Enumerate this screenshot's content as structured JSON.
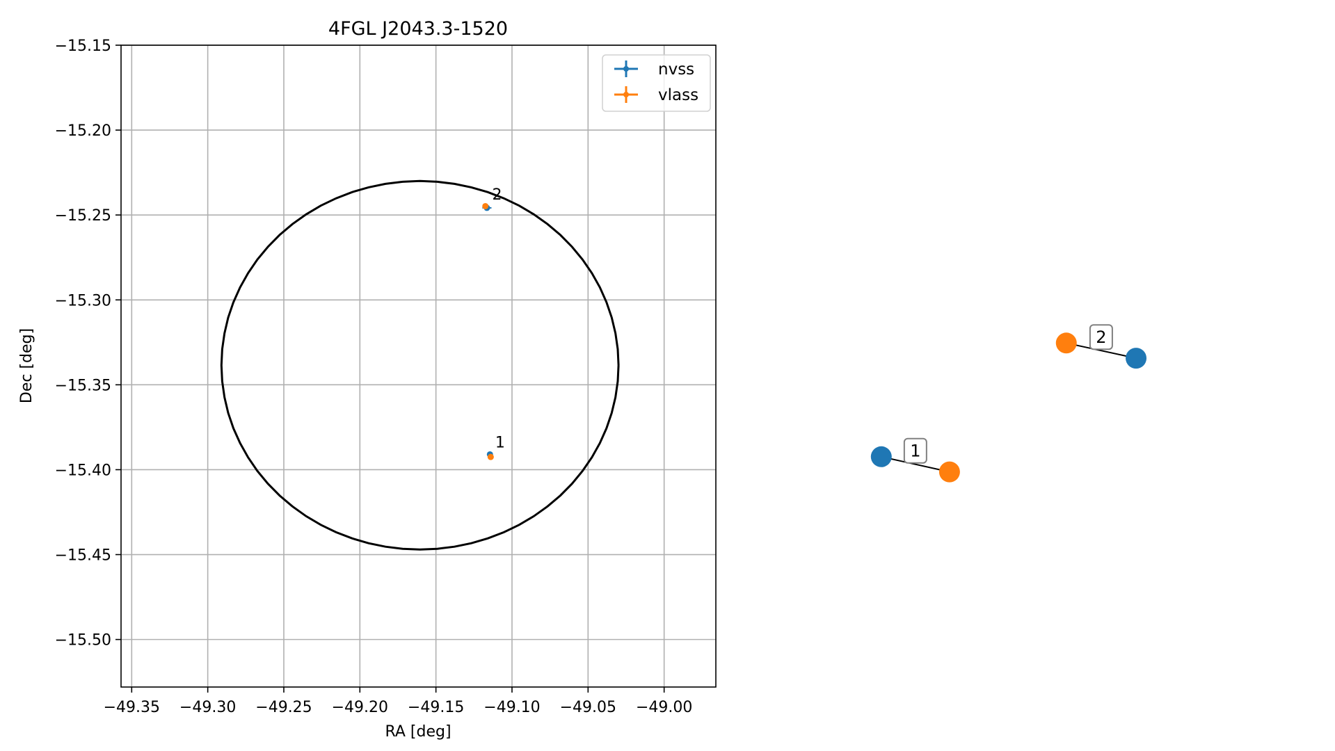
{
  "chart_data": [
    {
      "type": "scatter",
      "title": "4FGL J2043.3-1520",
      "xlabel": "RA [deg]",
      "ylabel": "Dec [deg]",
      "xlim": [
        -49.357,
        -48.966
      ],
      "ylim": [
        -15.528,
        -15.15
      ],
      "xticks": [
        -49.35,
        -49.3,
        -49.25,
        -49.2,
        -49.15,
        -49.1,
        -49.05,
        -49.0
      ],
      "xtick_labels": [
        "−49.35",
        "−49.30",
        "−49.25",
        "−49.20",
        "−49.15",
        "−49.10",
        "−49.05",
        "−49.00"
      ],
      "yticks": [
        -15.15,
        -15.2,
        -15.25,
        -15.3,
        -15.35,
        -15.4,
        -15.45,
        -15.5
      ],
      "ytick_labels": [
        "−15.15",
        "−15.20",
        "−15.25",
        "−15.30",
        "−15.35",
        "−15.40",
        "−15.45",
        "−15.50"
      ],
      "grid": true,
      "legend_position": "top-right",
      "series": [
        {
          "name": "nvss",
          "color": "#1f77b4",
          "points": [
            {
              "label": "1",
              "x": -49.1145,
              "y": -15.391,
              "xerr": 0.0012,
              "yerr": 0.001
            },
            {
              "label": "2",
              "x": -49.1165,
              "y": -15.2458,
              "xerr": 0.003,
              "yerr": 0.001
            }
          ]
        },
        {
          "name": "vlass",
          "color": "#ff7f0e",
          "points": [
            {
              "label": "1",
              "x": -49.114,
              "y": -15.3925,
              "xerr": 0.0003,
              "yerr": 0.0003
            },
            {
              "label": "2",
              "x": -49.1175,
              "y": -15.2448,
              "xerr": 0.0003,
              "yerr": 0.0003
            }
          ]
        }
      ],
      "annotations": [
        {
          "text": "1",
          "x": -49.111,
          "y": -15.387
        },
        {
          "text": "2",
          "x": -49.113,
          "y": -15.241
        }
      ],
      "ellipse": {
        "center": [
          -49.1605,
          -15.3385
        ],
        "semi_axis_x": 0.1305,
        "semi_axis_y": 0.1085,
        "color": "#000000"
      }
    },
    {
      "type": "diagram",
      "description_hidden": true,
      "pairs": [
        {
          "label": "2",
          "nvss": [
            0.78,
            0.05
          ],
          "vlass": [
            0.32,
            0.15
          ]
        },
        {
          "label": "1",
          "nvss": [
            -0.9,
            -0.6
          ],
          "vlass": [
            -0.45,
            -0.7
          ]
        }
      ],
      "colors": {
        "nvss": "#1f77b4",
        "vlass": "#ff7f0e"
      }
    }
  ]
}
